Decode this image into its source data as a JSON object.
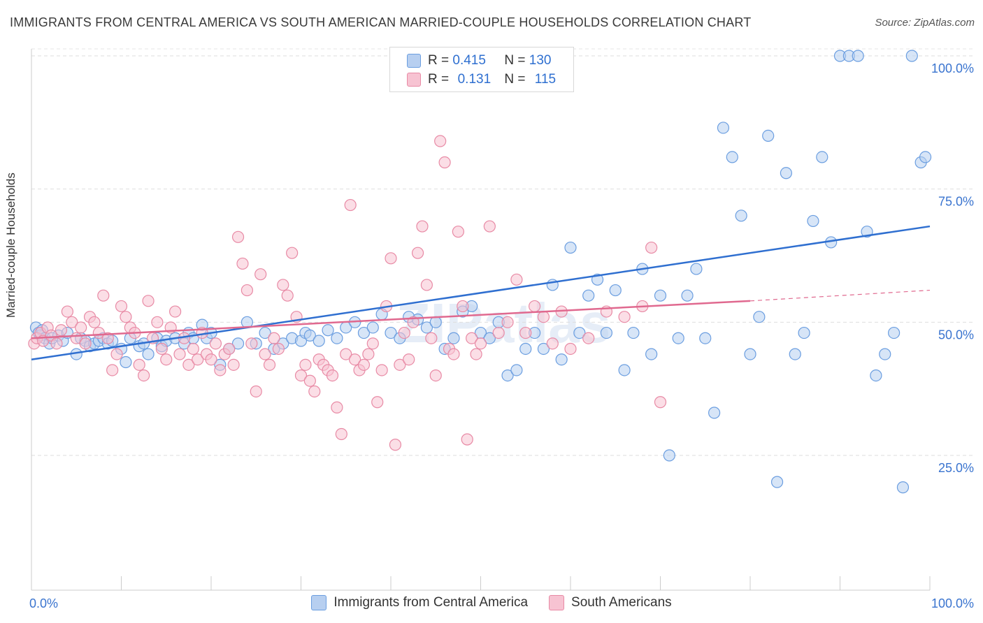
{
  "title": "IMMIGRANTS FROM CENTRAL AMERICA VS SOUTH AMERICAN MARRIED-COUPLE HOUSEHOLDS CORRELATION CHART",
  "source": "Source: ZipAtlas.com",
  "watermark": "ZIPatlas",
  "chart_data": {
    "type": "scatter",
    "title": "IMMIGRANTS FROM CENTRAL AMERICA VS SOUTH AMERICAN MARRIED-COUPLE HOUSEHOLDS CORRELATION CHART",
    "xlabel": "",
    "ylabel": "Married-couple Households",
    "xlim": [
      0,
      100
    ],
    "ylim": [
      0,
      105
    ],
    "x_tick_labels": [
      {
        "value": 0,
        "label": "0.0%"
      },
      {
        "value": 100,
        "label": "100.0%"
      }
    ],
    "y_tick_labels": [
      {
        "value": 25,
        "label": "25.0%"
      },
      {
        "value": 50,
        "label": "50.0%"
      },
      {
        "value": 75,
        "label": "75.0%"
      },
      {
        "value": 100,
        "label": "100.0%"
      }
    ],
    "legend_placement": "top-center",
    "series": [
      {
        "name": "Immigrants from Central America",
        "color": "#6b9ee0",
        "fill": "#b7cff0",
        "R": "0.415",
        "N": "130",
        "trend": {
          "x": [
            0,
            100
          ],
          "y": [
            43.0,
            68.0
          ],
          "color": "#2f6fd0"
        },
        "points": [
          [
            0.5,
            49
          ],
          [
            0.8,
            48
          ],
          [
            1,
            47.5
          ],
          [
            1.2,
            48.5
          ],
          [
            1.5,
            47
          ],
          [
            2,
            46
          ],
          [
            2.3,
            47
          ],
          [
            3,
            47.5
          ],
          [
            3.5,
            46.5
          ],
          [
            4,
            48
          ],
          [
            5,
            44
          ],
          [
            5.5,
            47
          ],
          [
            6,
            46.5
          ],
          [
            6.5,
            45.5
          ],
          [
            7,
            46
          ],
          [
            7.5,
            46.5
          ],
          [
            8,
            47
          ],
          [
            8.5,
            46
          ],
          [
            9,
            46.5
          ],
          [
            10,
            45
          ],
          [
            10.5,
            42.5
          ],
          [
            11,
            47
          ],
          [
            12,
            45.5
          ],
          [
            12.5,
            46
          ],
          [
            13,
            44
          ],
          [
            14,
            47
          ],
          [
            14.5,
            45.5
          ],
          [
            15,
            46.5
          ],
          [
            16,
            47
          ],
          [
            17,
            46
          ],
          [
            17.5,
            48
          ],
          [
            18,
            47
          ],
          [
            19,
            49.5
          ],
          [
            19.5,
            47
          ],
          [
            20,
            48
          ],
          [
            21,
            42
          ],
          [
            22,
            45
          ],
          [
            23,
            46
          ],
          [
            24,
            50
          ],
          [
            25,
            46
          ],
          [
            26,
            48
          ],
          [
            27,
            45
          ],
          [
            28,
            46
          ],
          [
            29,
            47
          ],
          [
            30,
            46.5
          ],
          [
            30.5,
            48
          ],
          [
            31,
            47.5
          ],
          [
            32,
            46.5
          ],
          [
            33,
            48.5
          ],
          [
            34,
            47
          ],
          [
            35,
            49
          ],
          [
            36,
            50
          ],
          [
            37,
            48
          ],
          [
            38,
            49
          ],
          [
            39,
            51.5
          ],
          [
            40,
            48
          ],
          [
            41,
            47
          ],
          [
            42,
            51
          ],
          [
            43,
            50.5
          ],
          [
            44,
            49
          ],
          [
            45,
            50
          ],
          [
            46,
            45
          ],
          [
            47,
            47
          ],
          [
            48,
            52
          ],
          [
            49,
            53
          ],
          [
            50,
            48
          ],
          [
            51,
            47
          ],
          [
            52,
            50
          ],
          [
            53,
            40
          ],
          [
            54,
            41
          ],
          [
            55,
            45
          ],
          [
            56,
            48
          ],
          [
            57,
            45
          ],
          [
            58,
            57
          ],
          [
            59,
            43
          ],
          [
            60,
            64
          ],
          [
            61,
            48
          ],
          [
            62,
            55
          ],
          [
            63,
            58
          ],
          [
            64,
            48
          ],
          [
            65,
            56
          ],
          [
            66,
            41
          ],
          [
            67,
            48
          ],
          [
            68,
            60
          ],
          [
            69,
            44
          ],
          [
            70,
            55
          ],
          [
            71,
            25
          ],
          [
            72,
            47
          ],
          [
            73,
            55
          ],
          [
            74,
            60
          ],
          [
            75,
            47
          ],
          [
            76,
            33
          ],
          [
            77,
            86.5
          ],
          [
            78,
            81
          ],
          [
            79,
            70
          ],
          [
            80,
            44
          ],
          [
            81,
            51
          ],
          [
            82,
            85
          ],
          [
            83,
            20
          ],
          [
            84,
            78
          ],
          [
            85,
            44
          ],
          [
            86,
            48
          ],
          [
            87,
            69
          ],
          [
            88,
            81
          ],
          [
            89,
            65
          ],
          [
            90,
            100
          ],
          [
            91,
            100
          ],
          [
            92,
            100
          ],
          [
            93,
            67
          ],
          [
            94,
            40
          ],
          [
            95,
            44
          ],
          [
            96,
            48
          ],
          [
            97,
            19
          ],
          [
            98,
            100
          ],
          [
            99,
            80
          ],
          [
            99.5,
            81
          ]
        ]
      },
      {
        "name": "South Americans",
        "color": "#e88aa5",
        "fill": "#f7c3d2",
        "R": "0.131",
        "N": "115",
        "trend": {
          "x": [
            0,
            80
          ],
          "y": [
            47.0,
            54.0
          ],
          "dash_x": [
            80,
            100
          ],
          "dash_y": [
            54.0,
            56.0
          ],
          "color": "#e0698f"
        },
        "points": [
          [
            0.3,
            46
          ],
          [
            0.6,
            47
          ],
          [
            1,
            48
          ],
          [
            1.3,
            46.5
          ],
          [
            1.8,
            49
          ],
          [
            2.2,
            47.5
          ],
          [
            2.8,
            46
          ],
          [
            3.3,
            48.5
          ],
          [
            4,
            52
          ],
          [
            4.5,
            50
          ],
          [
            5,
            47
          ],
          [
            5.5,
            49
          ],
          [
            6,
            46
          ],
          [
            6.5,
            51
          ],
          [
            7,
            50
          ],
          [
            7.5,
            48
          ],
          [
            8,
            55
          ],
          [
            8.5,
            47
          ],
          [
            9,
            41
          ],
          [
            9.5,
            44
          ],
          [
            10,
            53
          ],
          [
            10.5,
            51
          ],
          [
            11,
            49
          ],
          [
            11.5,
            48
          ],
          [
            12,
            42
          ],
          [
            12.5,
            40
          ],
          [
            13,
            54
          ],
          [
            13.5,
            47
          ],
          [
            14,
            50
          ],
          [
            14.5,
            45
          ],
          [
            15,
            43
          ],
          [
            15.5,
            49
          ],
          [
            16,
            52
          ],
          [
            16.5,
            44
          ],
          [
            17,
            47
          ],
          [
            17.5,
            42
          ],
          [
            18,
            45
          ],
          [
            18.5,
            43
          ],
          [
            19,
            48
          ],
          [
            19.5,
            44
          ],
          [
            20,
            43
          ],
          [
            20.5,
            46
          ],
          [
            21,
            41
          ],
          [
            21.5,
            44
          ],
          [
            22,
            45
          ],
          [
            22.5,
            42
          ],
          [
            23,
            66
          ],
          [
            23.5,
            61
          ],
          [
            24,
            56
          ],
          [
            24.5,
            46
          ],
          [
            25,
            37
          ],
          [
            25.5,
            59
          ],
          [
            26,
            44
          ],
          [
            26.5,
            42
          ],
          [
            27,
            47
          ],
          [
            27.5,
            45
          ],
          [
            28,
            57
          ],
          [
            28.5,
            55
          ],
          [
            29,
            63
          ],
          [
            29.5,
            51
          ],
          [
            30,
            40
          ],
          [
            30.5,
            42
          ],
          [
            31,
            39
          ],
          [
            31.5,
            37
          ],
          [
            32,
            43
          ],
          [
            32.5,
            42
          ],
          [
            33,
            41
          ],
          [
            33.5,
            40
          ],
          [
            34,
            34
          ],
          [
            34.5,
            29
          ],
          [
            35,
            44
          ],
          [
            35.5,
            72
          ],
          [
            36,
            43
          ],
          [
            36.5,
            41
          ],
          [
            37,
            42
          ],
          [
            37.5,
            44
          ],
          [
            38,
            46
          ],
          [
            38.5,
            35
          ],
          [
            39,
            41
          ],
          [
            39.5,
            53
          ],
          [
            40,
            62
          ],
          [
            40.5,
            27
          ],
          [
            41,
            42
          ],
          [
            41.5,
            48
          ],
          [
            42,
            43
          ],
          [
            42.5,
            50
          ],
          [
            43,
            63
          ],
          [
            43.5,
            68
          ],
          [
            44,
            57
          ],
          [
            44.5,
            47
          ],
          [
            45,
            40
          ],
          [
            45.5,
            84
          ],
          [
            46,
            80
          ],
          [
            46.5,
            45
          ],
          [
            47,
            44
          ],
          [
            47.5,
            67
          ],
          [
            48,
            53
          ],
          [
            48.5,
            28
          ],
          [
            49,
            47
          ],
          [
            49.5,
            44
          ],
          [
            50,
            46
          ],
          [
            51,
            68
          ],
          [
            52,
            48
          ],
          [
            53,
            50
          ],
          [
            54,
            58
          ],
          [
            55,
            48
          ],
          [
            56,
            53
          ],
          [
            57,
            51
          ],
          [
            58,
            46
          ],
          [
            59,
            52
          ],
          [
            60,
            45
          ],
          [
            62,
            47
          ],
          [
            64,
            52
          ],
          [
            66,
            51
          ],
          [
            68,
            53
          ],
          [
            69,
            64
          ],
          [
            70,
            35
          ]
        ]
      }
    ]
  },
  "legend": {
    "rows": [
      {
        "r_label": "R =",
        "r_value": "0.415",
        "n_label": "N =",
        "n_value": "130"
      },
      {
        "r_label": "R =",
        "r_value": "0.131",
        "n_label": "N =",
        "n_value": "115"
      }
    ]
  },
  "bottom_legend": [
    "Immigrants from Central America",
    "South Americans"
  ]
}
